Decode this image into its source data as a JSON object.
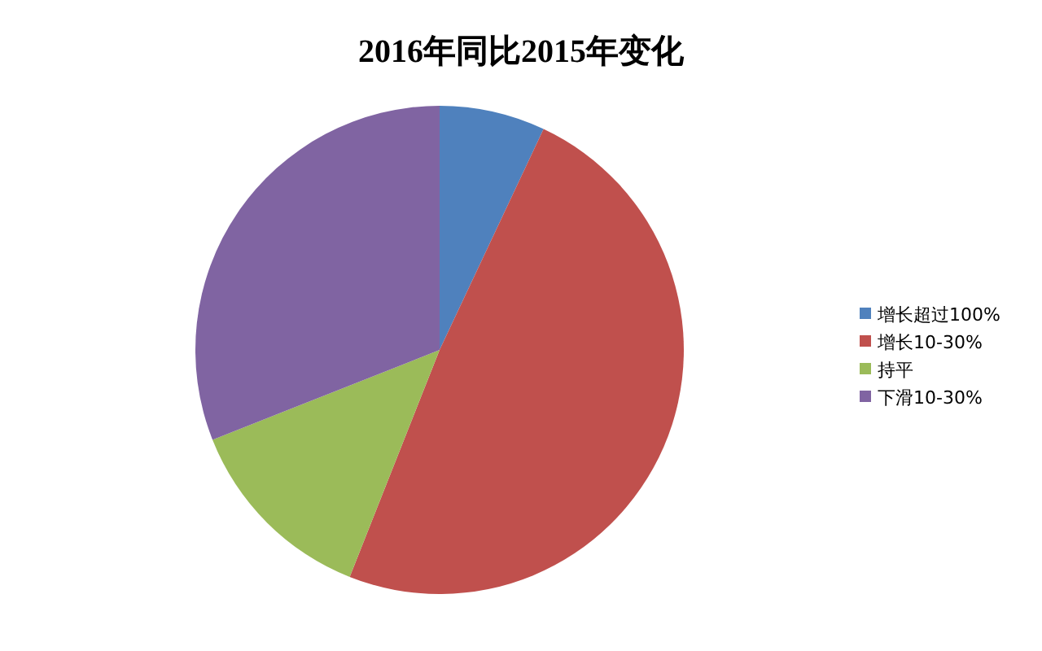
{
  "chart_data": {
    "type": "pie",
    "title": "2016年同比2015年变化",
    "categories": [
      "增长超过100%",
      "增长10-30%",
      "持平",
      "下滑10-30%"
    ],
    "values": [
      7,
      49,
      13,
      31
    ],
    "colors": [
      "#4f81bd",
      "#c0504d",
      "#9bbb59",
      "#8064a2"
    ],
    "legend": "right"
  }
}
